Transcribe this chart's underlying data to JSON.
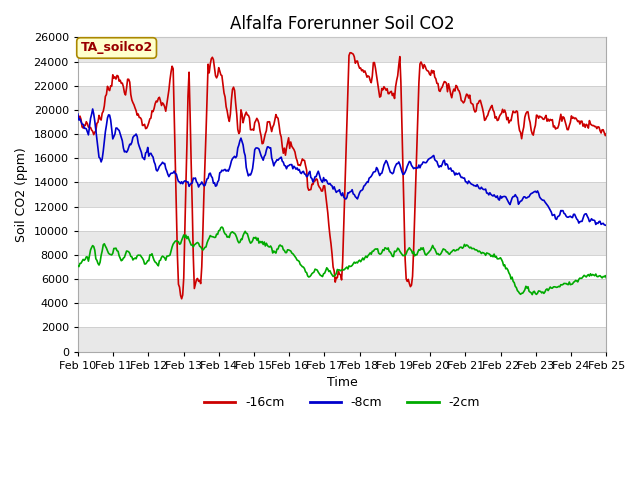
{
  "title": "Alfalfa Forerunner Soil CO2",
  "xlabel": "Time",
  "ylabel": "Soil CO2 (ppm)",
  "ylim": [
    0,
    26000
  ],
  "yticks": [
    0,
    2000,
    4000,
    6000,
    8000,
    10000,
    12000,
    14000,
    16000,
    18000,
    20000,
    22000,
    24000,
    26000
  ],
  "xtick_labels": [
    "Feb 10",
    "Feb 11",
    "Feb 12",
    "Feb 13",
    "Feb 14",
    "Feb 15",
    "Feb 16",
    "Feb 17",
    "Feb 18",
    "Feb 19",
    "Feb 20",
    "Feb 21",
    "Feb 22",
    "Feb 23",
    "Feb 24",
    "Feb 25"
  ],
  "legend_labels": [
    "-16cm",
    "-8cm",
    "-2cm"
  ],
  "legend_colors": [
    "#cc0000",
    "#0000cc",
    "#00aa00"
  ],
  "annotation_text": "TA_soilco2",
  "annotation_color": "#990000",
  "annotation_bg": "#ffffcc",
  "fig_bg_color": "#ffffff",
  "plot_bg_color": "#ffffff",
  "stripe_color": "#e8e8e8",
  "grid_color": "#cccccc",
  "title_fontsize": 12,
  "axis_label_fontsize": 9,
  "tick_fontsize": 8
}
